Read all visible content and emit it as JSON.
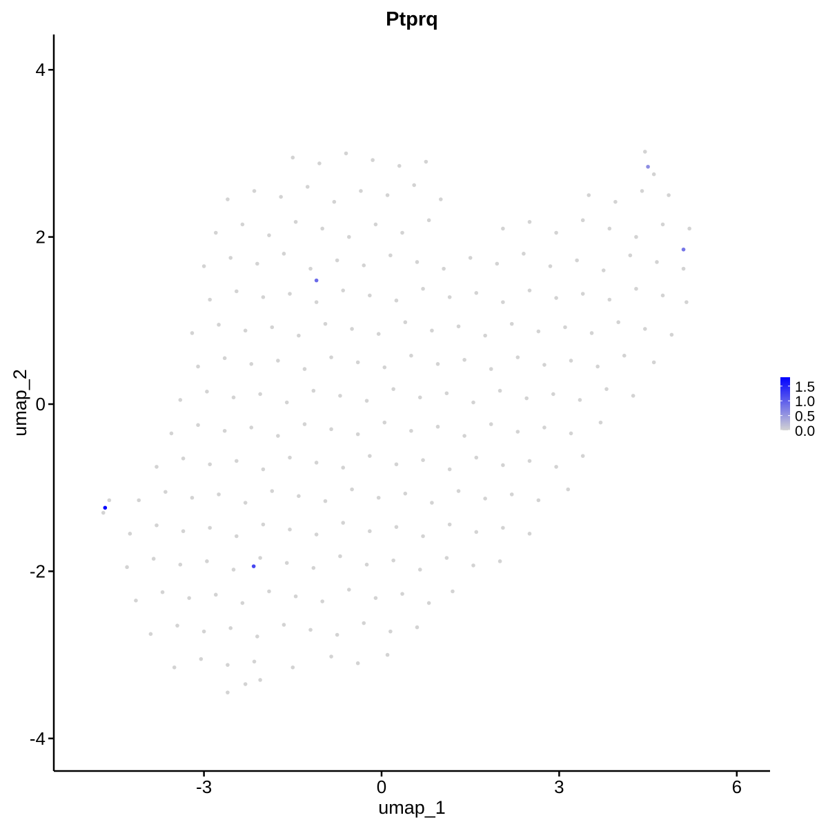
{
  "chart_data": {
    "type": "scatter",
    "title": "Ptprq",
    "xlabel": "umap_1",
    "ylabel": "umap_2",
    "xlim": [
      -5.4,
      6.6
    ],
    "ylim": [
      -4.3,
      4.4
    ],
    "xticks": [
      -3,
      0,
      3,
      6
    ],
    "yticks": [
      -4,
      -2,
      0,
      2,
      4
    ],
    "xtick_labels": [
      "-3",
      "0",
      "3",
      "6"
    ],
    "ytick_labels": [
      "-4",
      "-2",
      "0",
      "2",
      "4"
    ],
    "grid": false,
    "legend_position": "right",
    "colorscale": {
      "low": "#D3D3D3",
      "high": "#0000FF",
      "min": 0,
      "max": 1.8,
      "ticks": [
        0,
        0.5,
        1.0,
        1.5
      ],
      "tick_labels": [
        "0.0",
        "0.5",
        "1.0",
        "1.5"
      ]
    },
    "background_points_value": 0,
    "background_points": [
      [
        -1.5,
        2.95
      ],
      [
        -1.05,
        2.88
      ],
      [
        -0.6,
        3.0
      ],
      [
        -0.15,
        2.92
      ],
      [
        0.3,
        2.85
      ],
      [
        0.75,
        2.9
      ],
      [
        4.45,
        3.02
      ],
      [
        4.6,
        2.75
      ],
      [
        -2.6,
        2.45
      ],
      [
        -2.15,
        2.55
      ],
      [
        -1.7,
        2.48
      ],
      [
        -1.25,
        2.6
      ],
      [
        -0.8,
        2.42
      ],
      [
        -0.35,
        2.55
      ],
      [
        0.1,
        2.5
      ],
      [
        0.55,
        2.62
      ],
      [
        1.0,
        2.45
      ],
      [
        3.5,
        2.5
      ],
      [
        3.95,
        2.42
      ],
      [
        4.4,
        2.55
      ],
      [
        4.85,
        2.5
      ],
      [
        -2.8,
        2.05
      ],
      [
        -2.35,
        2.15
      ],
      [
        -1.9,
        2.02
      ],
      [
        -1.45,
        2.18
      ],
      [
        -1.0,
        2.1
      ],
      [
        -0.55,
        2.0
      ],
      [
        -0.1,
        2.15
      ],
      [
        0.35,
        2.05
      ],
      [
        0.8,
        2.2
      ],
      [
        2.05,
        2.1
      ],
      [
        2.5,
        2.18
      ],
      [
        2.95,
        2.05
      ],
      [
        3.4,
        2.2
      ],
      [
        3.85,
        2.1
      ],
      [
        4.3,
        2.0
      ],
      [
        4.75,
        2.15
      ],
      [
        5.2,
        2.1
      ],
      [
        -3.0,
        1.65
      ],
      [
        -2.55,
        1.75
      ],
      [
        -2.1,
        1.68
      ],
      [
        -1.65,
        1.8
      ],
      [
        -1.2,
        1.62
      ],
      [
        -0.75,
        1.72
      ],
      [
        -0.3,
        1.66
      ],
      [
        0.15,
        1.78
      ],
      [
        0.6,
        1.7
      ],
      [
        1.05,
        1.62
      ],
      [
        1.5,
        1.75
      ],
      [
        1.95,
        1.68
      ],
      [
        2.4,
        1.8
      ],
      [
        2.85,
        1.65
      ],
      [
        3.3,
        1.72
      ],
      [
        3.75,
        1.6
      ],
      [
        4.2,
        1.78
      ],
      [
        4.65,
        1.7
      ],
      [
        5.1,
        1.62
      ],
      [
        -2.9,
        1.25
      ],
      [
        -2.45,
        1.35
      ],
      [
        -2.0,
        1.28
      ],
      [
        -1.55,
        1.32
      ],
      [
        -1.1,
        1.22
      ],
      [
        -0.65,
        1.36
      ],
      [
        -0.2,
        1.3
      ],
      [
        0.25,
        1.24
      ],
      [
        0.7,
        1.38
      ],
      [
        1.15,
        1.28
      ],
      [
        1.6,
        1.33
      ],
      [
        2.05,
        1.22
      ],
      [
        2.5,
        1.36
      ],
      [
        2.95,
        1.27
      ],
      [
        3.4,
        1.32
      ],
      [
        3.85,
        1.25
      ],
      [
        4.3,
        1.38
      ],
      [
        4.75,
        1.3
      ],
      [
        5.15,
        1.22
      ],
      [
        -3.2,
        0.85
      ],
      [
        -2.75,
        0.95
      ],
      [
        -2.3,
        0.88
      ],
      [
        -1.85,
        0.92
      ],
      [
        -1.4,
        0.82
      ],
      [
        -0.95,
        0.96
      ],
      [
        -0.5,
        0.9
      ],
      [
        -0.05,
        0.84
      ],
      [
        0.4,
        0.98
      ],
      [
        0.85,
        0.88
      ],
      [
        1.3,
        0.93
      ],
      [
        1.75,
        0.82
      ],
      [
        2.2,
        0.96
      ],
      [
        2.65,
        0.87
      ],
      [
        3.1,
        0.92
      ],
      [
        3.55,
        0.85
      ],
      [
        4.0,
        0.98
      ],
      [
        4.45,
        0.9
      ],
      [
        4.9,
        0.83
      ],
      [
        -3.1,
        0.45
      ],
      [
        -2.65,
        0.55
      ],
      [
        -2.2,
        0.48
      ],
      [
        -1.75,
        0.52
      ],
      [
        -1.3,
        0.42
      ],
      [
        -0.85,
        0.56
      ],
      [
        -0.4,
        0.5
      ],
      [
        0.05,
        0.44
      ],
      [
        0.5,
        0.58
      ],
      [
        0.95,
        0.48
      ],
      [
        1.4,
        0.53
      ],
      [
        1.85,
        0.42
      ],
      [
        2.3,
        0.56
      ],
      [
        2.75,
        0.47
      ],
      [
        3.2,
        0.52
      ],
      [
        3.65,
        0.45
      ],
      [
        4.1,
        0.58
      ],
      [
        4.6,
        0.5
      ],
      [
        -3.4,
        0.05
      ],
      [
        -2.95,
        0.15
      ],
      [
        -2.5,
        0.08
      ],
      [
        -2.05,
        0.12
      ],
      [
        -1.6,
        0.02
      ],
      [
        -1.15,
        0.16
      ],
      [
        -0.7,
        0.1
      ],
      [
        -0.25,
        0.04
      ],
      [
        0.2,
        0.18
      ],
      [
        0.65,
        0.08
      ],
      [
        1.1,
        0.13
      ],
      [
        1.55,
        0.02
      ],
      [
        2.0,
        0.16
      ],
      [
        2.45,
        0.07
      ],
      [
        2.9,
        0.12
      ],
      [
        3.35,
        0.05
      ],
      [
        3.8,
        0.18
      ],
      [
        4.25,
        0.1
      ],
      [
        -3.55,
        -0.35
      ],
      [
        -3.1,
        -0.25
      ],
      [
        -2.65,
        -0.32
      ],
      [
        -2.2,
        -0.28
      ],
      [
        -1.75,
        -0.38
      ],
      [
        -1.3,
        -0.24
      ],
      [
        -0.85,
        -0.3
      ],
      [
        -0.4,
        -0.36
      ],
      [
        0.05,
        -0.22
      ],
      [
        0.5,
        -0.32
      ],
      [
        0.95,
        -0.27
      ],
      [
        1.4,
        -0.38
      ],
      [
        1.85,
        -0.24
      ],
      [
        2.3,
        -0.33
      ],
      [
        2.75,
        -0.28
      ],
      [
        3.2,
        -0.35
      ],
      [
        3.7,
        -0.22
      ],
      [
        -3.8,
        -0.75
      ],
      [
        -3.35,
        -0.65
      ],
      [
        -2.9,
        -0.72
      ],
      [
        -2.45,
        -0.68
      ],
      [
        -2.0,
        -0.78
      ],
      [
        -1.55,
        -0.64
      ],
      [
        -1.1,
        -0.7
      ],
      [
        -0.65,
        -0.76
      ],
      [
        -0.2,
        -0.62
      ],
      [
        0.25,
        -0.72
      ],
      [
        0.7,
        -0.67
      ],
      [
        1.15,
        -0.78
      ],
      [
        1.6,
        -0.64
      ],
      [
        2.05,
        -0.73
      ],
      [
        2.5,
        -0.68
      ],
      [
        2.95,
        -0.75
      ],
      [
        3.4,
        -0.62
      ],
      [
        -4.6,
        -1.15
      ],
      [
        -4.7,
        -1.3
      ],
      [
        -4.1,
        -1.15
      ],
      [
        -3.65,
        -1.05
      ],
      [
        -3.2,
        -1.12
      ],
      [
        -2.75,
        -1.08
      ],
      [
        -2.3,
        -1.18
      ],
      [
        -1.85,
        -1.04
      ],
      [
        -1.4,
        -1.1
      ],
      [
        -0.95,
        -1.16
      ],
      [
        -0.5,
        -1.02
      ],
      [
        -0.05,
        -1.12
      ],
      [
        0.4,
        -1.07
      ],
      [
        0.85,
        -1.18
      ],
      [
        1.3,
        -1.04
      ],
      [
        1.75,
        -1.13
      ],
      [
        2.2,
        -1.08
      ],
      [
        2.65,
        -1.15
      ],
      [
        3.15,
        -1.02
      ],
      [
        -4.25,
        -1.55
      ],
      [
        -3.8,
        -1.45
      ],
      [
        -3.35,
        -1.52
      ],
      [
        -2.9,
        -1.48
      ],
      [
        -2.45,
        -1.58
      ],
      [
        -2.0,
        -1.44
      ],
      [
        -1.55,
        -1.5
      ],
      [
        -1.1,
        -1.56
      ],
      [
        -0.65,
        -1.42
      ],
      [
        -0.2,
        -1.52
      ],
      [
        0.25,
        -1.47
      ],
      [
        0.7,
        -1.58
      ],
      [
        1.15,
        -1.44
      ],
      [
        1.6,
        -1.53
      ],
      [
        2.05,
        -1.48
      ],
      [
        2.5,
        -1.55
      ],
      [
        -4.3,
        -1.95
      ],
      [
        -3.85,
        -1.85
      ],
      [
        -3.4,
        -1.92
      ],
      [
        -2.95,
        -1.88
      ],
      [
        -2.5,
        -1.98
      ],
      [
        -2.05,
        -1.84
      ],
      [
        -1.6,
        -1.9
      ],
      [
        -1.15,
        -1.96
      ],
      [
        -0.7,
        -1.82
      ],
      [
        -0.25,
        -1.92
      ],
      [
        0.2,
        -1.87
      ],
      [
        0.65,
        -1.98
      ],
      [
        1.1,
        -1.84
      ],
      [
        1.55,
        -1.93
      ],
      [
        2.0,
        -1.88
      ],
      [
        -4.15,
        -2.35
      ],
      [
        -3.7,
        -2.25
      ],
      [
        -3.25,
        -2.32
      ],
      [
        -2.8,
        -2.28
      ],
      [
        -2.35,
        -2.38
      ],
      [
        -1.9,
        -2.24
      ],
      [
        -1.45,
        -2.3
      ],
      [
        -1.0,
        -2.36
      ],
      [
        -0.55,
        -2.22
      ],
      [
        -0.1,
        -2.32
      ],
      [
        0.35,
        -2.27
      ],
      [
        0.8,
        -2.38
      ],
      [
        1.2,
        -2.24
      ],
      [
        -3.9,
        -2.75
      ],
      [
        -3.45,
        -2.65
      ],
      [
        -3.0,
        -2.72
      ],
      [
        -2.55,
        -2.68
      ],
      [
        -2.1,
        -2.78
      ],
      [
        -1.65,
        -2.64
      ],
      [
        -1.2,
        -2.7
      ],
      [
        -0.75,
        -2.76
      ],
      [
        -0.3,
        -2.62
      ],
      [
        0.15,
        -2.72
      ],
      [
        0.6,
        -2.67
      ],
      [
        -3.5,
        -3.15
      ],
      [
        -3.05,
        -3.05
      ],
      [
        -2.6,
        -3.12
      ],
      [
        -2.15,
        -3.08
      ],
      [
        -1.5,
        -3.15
      ],
      [
        -0.85,
        -3.02
      ],
      [
        -0.4,
        -3.1
      ],
      [
        0.1,
        -3.0
      ],
      [
        -2.6,
        -3.45
      ],
      [
        -2.3,
        -3.35
      ],
      [
        -2.05,
        -3.3
      ]
    ],
    "expressing_points": [
      {
        "x": -4.67,
        "y": -1.24,
        "value": 1.8
      },
      {
        "x": -2.16,
        "y": -1.94,
        "value": 1.2
      },
      {
        "x": -1.1,
        "y": 1.48,
        "value": 0.9
      },
      {
        "x": 4.5,
        "y": 2.84,
        "value": 0.6
      },
      {
        "x": 5.1,
        "y": 1.85,
        "value": 0.8
      }
    ]
  }
}
